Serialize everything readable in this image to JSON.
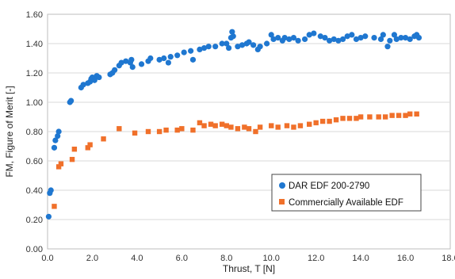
{
  "chart_data": {
    "type": "scatter",
    "xlabel": "Thrust, T [N]",
    "ylabel": "FM, Figure of Merit [-]",
    "xlim": [
      0,
      18
    ],
    "ylim": [
      0,
      1.6
    ],
    "x_ticks": [
      "0.0",
      "2.0",
      "4.0",
      "6.0",
      "8.0",
      "10.0",
      "12.0",
      "14.0",
      "16.0",
      "18.0"
    ],
    "y_ticks": [
      "0.00",
      "0.20",
      "0.40",
      "0.60",
      "0.80",
      "1.00",
      "1.20",
      "1.40",
      "1.60"
    ],
    "grid": "horizontal",
    "legend_position": "lower-right",
    "series": [
      {
        "name": "DAR EDF 200-2790",
        "color": "#1f77d0",
        "marker": "circle",
        "points": [
          [
            0.05,
            0.22
          ],
          [
            0.1,
            0.38
          ],
          [
            0.15,
            0.4
          ],
          [
            0.3,
            0.69
          ],
          [
            0.35,
            0.74
          ],
          [
            0.45,
            0.77
          ],
          [
            0.5,
            0.8
          ],
          [
            1.0,
            1.0
          ],
          [
            1.05,
            1.01
          ],
          [
            1.5,
            1.1
          ],
          [
            1.6,
            1.12
          ],
          [
            1.8,
            1.13
          ],
          [
            1.9,
            1.14
          ],
          [
            1.95,
            1.16
          ],
          [
            2.0,
            1.17
          ],
          [
            2.1,
            1.15
          ],
          [
            2.2,
            1.18
          ],
          [
            2.3,
            1.17
          ],
          [
            2.8,
            1.19
          ],
          [
            2.9,
            1.2
          ],
          [
            3.0,
            1.22
          ],
          [
            3.2,
            1.25
          ],
          [
            3.3,
            1.27
          ],
          [
            3.5,
            1.28
          ],
          [
            3.7,
            1.27
          ],
          [
            3.75,
            1.29
          ],
          [
            3.8,
            1.24
          ],
          [
            4.2,
            1.26
          ],
          [
            4.5,
            1.28
          ],
          [
            4.6,
            1.3
          ],
          [
            5.0,
            1.29
          ],
          [
            5.2,
            1.3
          ],
          [
            5.4,
            1.27
          ],
          [
            5.5,
            1.31
          ],
          [
            5.8,
            1.32
          ],
          [
            6.1,
            1.34
          ],
          [
            6.4,
            1.35
          ],
          [
            6.5,
            1.29
          ],
          [
            6.8,
            1.36
          ],
          [
            7.0,
            1.37
          ],
          [
            7.2,
            1.38
          ],
          [
            7.5,
            1.38
          ],
          [
            7.8,
            1.4
          ],
          [
            8.0,
            1.4
          ],
          [
            8.1,
            1.37
          ],
          [
            8.2,
            1.44
          ],
          [
            8.25,
            1.48
          ],
          [
            8.3,
            1.45
          ],
          [
            8.5,
            1.38
          ],
          [
            8.7,
            1.39
          ],
          [
            8.9,
            1.4
          ],
          [
            9.0,
            1.41
          ],
          [
            9.2,
            1.39
          ],
          [
            9.4,
            1.36
          ],
          [
            9.5,
            1.38
          ],
          [
            9.8,
            1.4
          ],
          [
            10.0,
            1.46
          ],
          [
            10.1,
            1.43
          ],
          [
            10.3,
            1.44
          ],
          [
            10.5,
            1.42
          ],
          [
            10.6,
            1.44
          ],
          [
            10.8,
            1.43
          ],
          [
            11.0,
            1.44
          ],
          [
            11.2,
            1.42
          ],
          [
            11.5,
            1.43
          ],
          [
            11.7,
            1.46
          ],
          [
            11.9,
            1.47
          ],
          [
            12.2,
            1.45
          ],
          [
            12.4,
            1.44
          ],
          [
            12.6,
            1.42
          ],
          [
            12.8,
            1.43
          ],
          [
            13.0,
            1.42
          ],
          [
            13.2,
            1.43
          ],
          [
            13.4,
            1.45
          ],
          [
            13.6,
            1.46
          ],
          [
            13.8,
            1.43
          ],
          [
            14.0,
            1.44
          ],
          [
            14.2,
            1.45
          ],
          [
            14.6,
            1.44
          ],
          [
            14.9,
            1.43
          ],
          [
            15.0,
            1.46
          ],
          [
            15.2,
            1.38
          ],
          [
            15.3,
            1.42
          ],
          [
            15.5,
            1.46
          ],
          [
            15.6,
            1.43
          ],
          [
            15.8,
            1.44
          ],
          [
            16.0,
            1.44
          ],
          [
            16.2,
            1.43
          ],
          [
            16.4,
            1.45
          ],
          [
            16.5,
            1.46
          ],
          [
            16.6,
            1.44
          ]
        ]
      },
      {
        "name": "Commercially Available EDF",
        "color": "#f0702a",
        "marker": "square",
        "points": [
          [
            0.3,
            0.29
          ],
          [
            0.5,
            0.56
          ],
          [
            0.6,
            0.58
          ],
          [
            1.1,
            0.61
          ],
          [
            1.2,
            0.68
          ],
          [
            1.8,
            0.69
          ],
          [
            1.9,
            0.71
          ],
          [
            2.5,
            0.75
          ],
          [
            3.2,
            0.82
          ],
          [
            3.9,
            0.79
          ],
          [
            4.5,
            0.8
          ],
          [
            5.0,
            0.8
          ],
          [
            5.3,
            0.81
          ],
          [
            5.8,
            0.81
          ],
          [
            6.0,
            0.82
          ],
          [
            6.5,
            0.81
          ],
          [
            6.8,
            0.86
          ],
          [
            7.0,
            0.84
          ],
          [
            7.3,
            0.85
          ],
          [
            7.5,
            0.84
          ],
          [
            7.8,
            0.85
          ],
          [
            8.0,
            0.84
          ],
          [
            8.2,
            0.83
          ],
          [
            8.5,
            0.82
          ],
          [
            8.8,
            0.83
          ],
          [
            9.0,
            0.82
          ],
          [
            9.3,
            0.8
          ],
          [
            9.5,
            0.83
          ],
          [
            10.0,
            0.84
          ],
          [
            10.3,
            0.83
          ],
          [
            10.7,
            0.84
          ],
          [
            11.0,
            0.83
          ],
          [
            11.3,
            0.84
          ],
          [
            11.7,
            0.85
          ],
          [
            12.0,
            0.86
          ],
          [
            12.3,
            0.87
          ],
          [
            12.6,
            0.87
          ],
          [
            12.9,
            0.88
          ],
          [
            13.2,
            0.89
          ],
          [
            13.5,
            0.89
          ],
          [
            13.8,
            0.89
          ],
          [
            14.0,
            0.9
          ],
          [
            14.4,
            0.9
          ],
          [
            14.8,
            0.9
          ],
          [
            15.1,
            0.9
          ],
          [
            15.4,
            0.91
          ],
          [
            15.7,
            0.91
          ],
          [
            16.0,
            0.91
          ],
          [
            16.2,
            0.92
          ],
          [
            16.5,
            0.92
          ]
        ]
      }
    ]
  }
}
